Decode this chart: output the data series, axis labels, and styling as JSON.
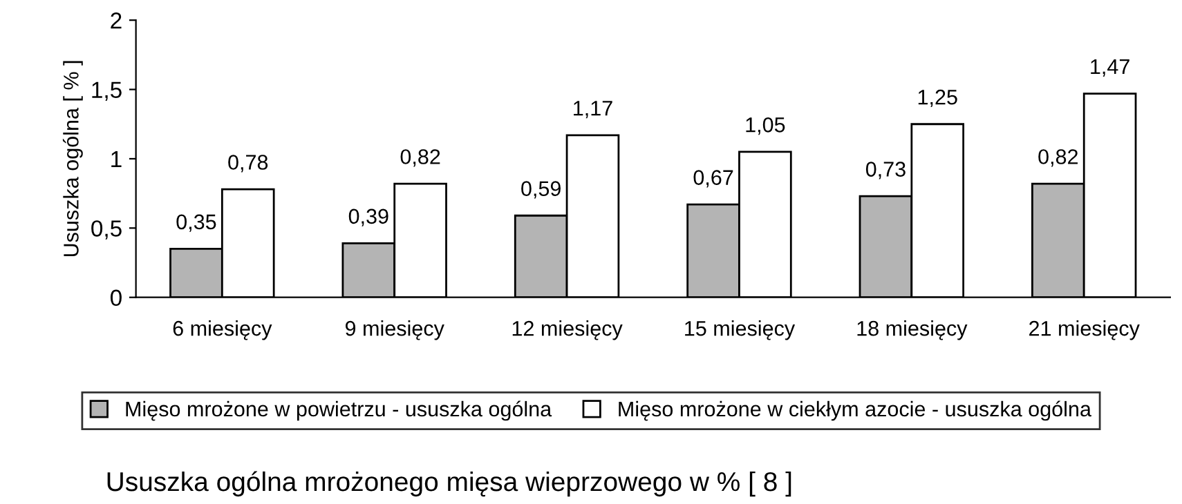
{
  "chart_data": {
    "type": "bar",
    "title": "Ususzka ogólna mrożonego mięsa wieprzowego w % [ 8 ]",
    "ylabel": "Ususzka ogólna [ % ]",
    "categories": [
      "6 miesięcy",
      "9 miesięcy",
      "12 miesięcy",
      "15 miesięcy",
      "18 miesięcy",
      "21 miesięcy"
    ],
    "series": [
      {
        "name": "Mięso mrożone w powietrzu - ususzka ogólna",
        "color": "#b4b4b4",
        "values": [
          0.35,
          0.39,
          0.59,
          0.67,
          0.73,
          0.82
        ],
        "value_labels": [
          "0,35",
          "0,39",
          "0,59",
          "0,67",
          "0,73",
          "0,82"
        ]
      },
      {
        "name": "Mięso mrożone w ciekłym azocie - ususzka ogólna",
        "color": "#ffffff",
        "values": [
          0.78,
          0.82,
          1.17,
          1.05,
          1.25,
          1.47
        ],
        "value_labels": [
          "0,78",
          "0,82",
          "1,17",
          "1,05",
          "1,25",
          "1,47"
        ]
      }
    ],
    "ylim": [
      0,
      2
    ],
    "yticks": [
      0,
      {
        "value": 0.5,
        "label": "0,5"
      },
      1,
      {
        "value": 1.5,
        "label": "1,5"
      },
      2
    ],
    "grid": false,
    "legend": "bottom"
  }
}
